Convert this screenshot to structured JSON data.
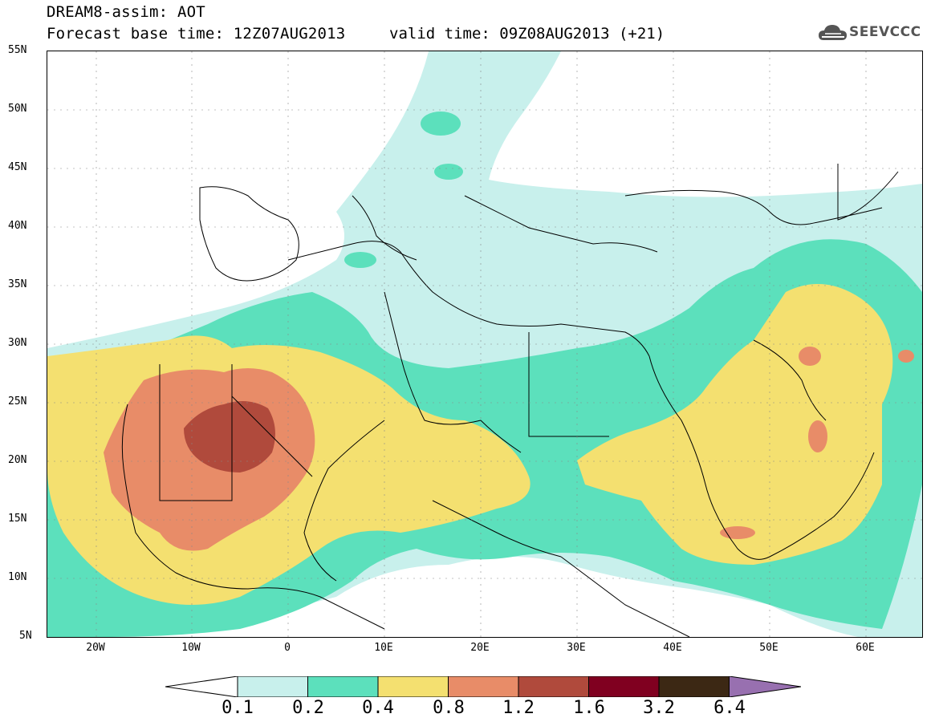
{
  "header": {
    "title_line1": "DREAM8-assim: AOT",
    "title_line2": "Forecast base time: 12Z07AUG2013",
    "valid_time": "valid time: 09Z08AUG2013 (+21)",
    "logo_text": "SEEVCCC"
  },
  "map": {
    "lat_labels": [
      "55N",
      "50N",
      "45N",
      "40N",
      "35N",
      "30N",
      "25N",
      "20N",
      "15N",
      "10N",
      "5N"
    ],
    "lon_labels": [
      "20W",
      "10W",
      "0",
      "10E",
      "20E",
      "30E",
      "40E",
      "50E",
      "60E"
    ],
    "colors": {
      "aot_0_1": "#c8f0ec",
      "aot_0_2": "#5ce0bc",
      "aot_0_4": "#f4e070",
      "aot_0_8": "#e88c68",
      "aot_1_2": "#b04a3c",
      "aot_1_6": "#800020",
      "aot_3_2": "#3c2814",
      "aot_6_4": "#9870b0",
      "coastline": "#000000"
    }
  },
  "colorbar": {
    "labels": [
      "0.1",
      "0.2",
      "0.4",
      "0.8",
      "1.2",
      "1.6",
      "3.2",
      "6.4"
    ]
  }
}
